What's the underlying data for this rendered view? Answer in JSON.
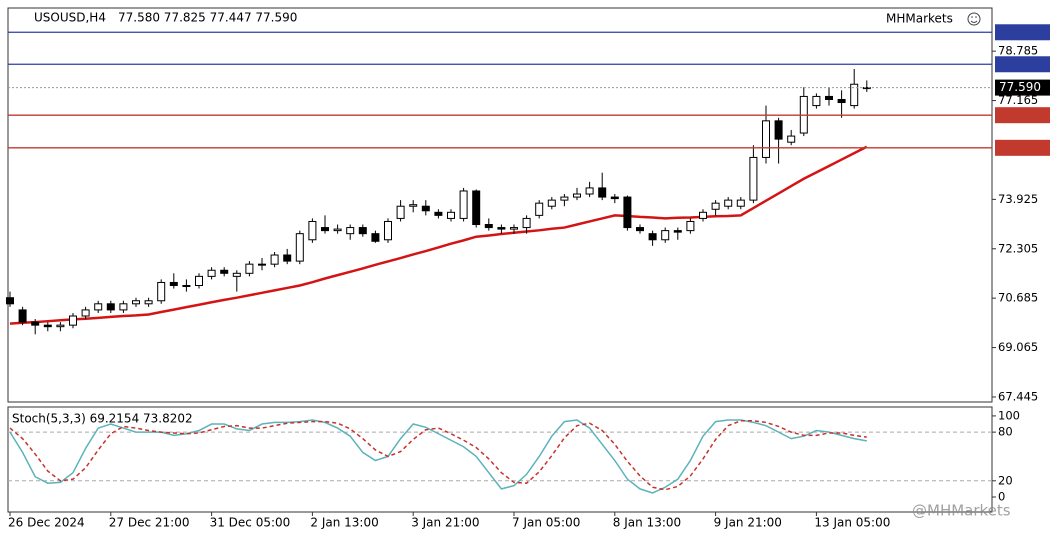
{
  "chart_data": [
    {
      "type": "candlestick",
      "title": "USOUSD,H4",
      "ohlc_text": "77.580 77.825 77.447 77.590",
      "brand": "MHMarkets",
      "watermark": "@MHMarkets",
      "categories": [
        "26 Dec 2024",
        null,
        null,
        null,
        null,
        null,
        null,
        null,
        "27 Dec 21:00",
        null,
        null,
        null,
        null,
        null,
        null,
        null,
        "31 Dec 05:00",
        null,
        null,
        null,
        null,
        null,
        null,
        null,
        "2 Jan 13:00",
        null,
        null,
        null,
        null,
        null,
        null,
        null,
        "3 Jan 21:00",
        null,
        null,
        null,
        null,
        null,
        null,
        null,
        "7 Jan 05:00",
        null,
        null,
        null,
        null,
        null,
        null,
        null,
        "8 Jan 13:00",
        null,
        null,
        null,
        null,
        null,
        null,
        null,
        "9 Jan 21:00",
        null,
        null,
        null,
        null,
        null,
        null,
        null,
        "13 Jan 05:00",
        null,
        null,
        null,
        null
      ],
      "open": [
        70.7,
        70.3,
        69.9,
        69.8,
        69.75,
        69.8,
        70.1,
        70.3,
        70.5,
        70.3,
        70.5,
        70.5,
        70.6,
        71.2,
        71.1,
        71.1,
        71.4,
        71.6,
        71.4,
        71.5,
        71.8,
        71.8,
        72.1,
        71.9,
        72.6,
        73.0,
        72.9,
        72.8,
        73.0,
        72.8,
        72.6,
        73.3,
        73.7,
        73.7,
        73.5,
        73.3,
        73.3,
        74.2,
        73.1,
        73.0,
        72.95,
        73.0,
        73.4,
        73.7,
        73.9,
        74.0,
        74.1,
        74.3,
        74.0,
        74.0,
        73.0,
        72.8,
        72.6,
        72.9,
        72.9,
        73.3,
        73.6,
        73.7,
        73.7,
        73.9,
        75.3,
        76.5,
        75.8,
        76.1,
        77.0,
        77.3,
        77.2,
        77.0,
        77.58
      ],
      "high": [
        70.9,
        70.4,
        70.0,
        69.9,
        69.9,
        70.2,
        70.4,
        70.6,
        70.6,
        70.6,
        70.7,
        70.7,
        71.3,
        71.5,
        71.3,
        71.5,
        71.7,
        71.7,
        71.6,
        71.9,
        72.0,
        72.2,
        72.3,
        72.9,
        73.3,
        73.4,
        73.1,
        73.1,
        73.1,
        72.9,
        73.3,
        73.9,
        73.9,
        73.9,
        73.6,
        73.6,
        74.3,
        74.25,
        73.3,
        73.1,
        73.1,
        73.4,
        73.9,
        74.0,
        74.1,
        74.3,
        74.5,
        74.8,
        74.1,
        74.05,
        73.1,
        72.9,
        73.0,
        73.0,
        73.3,
        73.6,
        73.9,
        74.0,
        74.0,
        75.7,
        77.0,
        76.6,
        76.2,
        77.6,
        77.4,
        77.6,
        77.5,
        78.2,
        77.825
      ],
      "low": [
        70.4,
        69.8,
        69.5,
        69.6,
        69.6,
        69.7,
        70.0,
        70.2,
        70.2,
        70.2,
        70.4,
        70.4,
        70.5,
        71.0,
        70.9,
        71.0,
        71.3,
        71.4,
        70.9,
        71.4,
        71.6,
        71.7,
        71.8,
        71.8,
        72.5,
        72.8,
        72.8,
        72.6,
        72.7,
        72.5,
        72.5,
        73.2,
        73.5,
        73.4,
        73.3,
        73.2,
        73.2,
        73.0,
        72.9,
        72.8,
        72.8,
        72.8,
        73.3,
        73.6,
        73.7,
        73.9,
        74.0,
        73.9,
        73.8,
        72.9,
        72.8,
        72.4,
        72.5,
        72.6,
        72.8,
        73.2,
        73.4,
        73.6,
        73.6,
        73.8,
        75.1,
        75.1,
        75.7,
        76.0,
        76.9,
        77.0,
        76.6,
        76.9,
        77.447
      ],
      "close": [
        70.5,
        69.9,
        69.8,
        69.75,
        69.8,
        70.1,
        70.3,
        70.5,
        70.3,
        70.5,
        70.6,
        70.6,
        71.2,
        71.1,
        71.1,
        71.4,
        71.6,
        71.5,
        71.5,
        71.8,
        71.8,
        72.1,
        71.9,
        72.8,
        73.2,
        72.9,
        72.95,
        73.0,
        72.8,
        72.55,
        73.2,
        73.7,
        73.75,
        73.55,
        73.4,
        73.5,
        74.2,
        73.1,
        73.0,
        72.95,
        73.0,
        73.3,
        73.8,
        73.9,
        74.0,
        74.1,
        74.3,
        74.0,
        73.95,
        73.0,
        72.9,
        72.6,
        72.9,
        72.85,
        73.2,
        73.5,
        73.8,
        73.9,
        73.9,
        75.3,
        76.5,
        75.9,
        76.0,
        77.3,
        77.3,
        77.2,
        77.1,
        77.7,
        77.59
      ],
      "overlay": {
        "color": "#d41414",
        "values": [
          69.85,
          69.88,
          69.9,
          69.93,
          69.96,
          69.99,
          70.01,
          70.04,
          70.07,
          70.1,
          70.12,
          70.15,
          70.23,
          70.31,
          70.39,
          70.47,
          70.55,
          70.63,
          70.7,
          70.78,
          70.86,
          70.94,
          71.02,
          71.1,
          71.21,
          71.33,
          71.44,
          71.55,
          71.66,
          71.78,
          71.89,
          72.0,
          72.12,
          72.23,
          72.35,
          72.47,
          72.58,
          72.7,
          72.74,
          72.79,
          72.83,
          72.87,
          72.91,
          72.96,
          73.0,
          73.1,
          73.2,
          73.3,
          73.4,
          73.38,
          73.35,
          73.33,
          73.3,
          73.32,
          73.33,
          73.35,
          73.37,
          73.38,
          73.4,
          73.64,
          73.88,
          74.12,
          74.36,
          74.6,
          74.81,
          75.02,
          75.23,
          75.44,
          75.65
        ]
      },
      "ylim": [
        67.28,
        80.2
      ],
      "yticks": [
        67.445,
        69.065,
        70.685,
        72.305,
        73.925,
        77.165,
        78.785
      ],
      "levels": [
        {
          "value": 79.404,
          "color": "#2d3f9e"
        },
        {
          "value": 78.355,
          "color": "#2d3f9e"
        },
        {
          "value": 77.59,
          "label": "77.590",
          "color": "#000000"
        },
        {
          "value": 76.685,
          "color": "#c23a2e"
        },
        {
          "value": 75.615,
          "color": "#c23a2e"
        }
      ],
      "bull_color": "#ffffff",
      "bear_color": "#000000"
    },
    {
      "type": "line",
      "title": "Stoch(5,3,3) 69.2154 73.8202",
      "series": [
        {
          "color": "#5bb3ba",
          "dash": false,
          "values": [
            80,
            55,
            25,
            17,
            18,
            30,
            60,
            85,
            90,
            85,
            80,
            80,
            80,
            76,
            78,
            82,
            90,
            90,
            84,
            82,
            90,
            92,
            92,
            93,
            95,
            92,
            85,
            75,
            55,
            45,
            50,
            72,
            90,
            86,
            78,
            70,
            62,
            50,
            30,
            10,
            14,
            28,
            50,
            75,
            93,
            95,
            85,
            65,
            45,
            22,
            10,
            5,
            12,
            22,
            45,
            75,
            93,
            95,
            95,
            92,
            88,
            80,
            72,
            75,
            82,
            80,
            76,
            72,
            69.2154
          ]
        },
        {
          "color": "#c8322d",
          "dash": true,
          "values": [
            85,
            72,
            53,
            32,
            20,
            22,
            36,
            58,
            78,
            87,
            85,
            82,
            80,
            79,
            78,
            79,
            83,
            87,
            88,
            85,
            85,
            88,
            91,
            92,
            93,
            93,
            91,
            84,
            72,
            58,
            50,
            56,
            71,
            83,
            85,
            78,
            70,
            61,
            47,
            30,
            18,
            17,
            31,
            51,
            73,
            88,
            91,
            82,
            65,
            44,
            26,
            12,
            9,
            13,
            26,
            47,
            71,
            88,
            94,
            94,
            92,
            87,
            80,
            76,
            76,
            79,
            79,
            76,
            73.8202
          ]
        }
      ],
      "ylim": [
        -18.5,
        111
      ],
      "yticks": [
        0,
        20,
        80,
        100
      ],
      "dashed_levels": [
        80,
        20
      ]
    }
  ]
}
